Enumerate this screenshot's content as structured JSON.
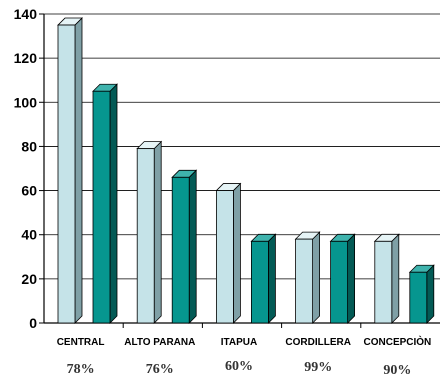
{
  "chart_data": {
    "type": "bar",
    "title": "",
    "xlabel": "",
    "ylabel": "",
    "ylim": [
      0,
      140
    ],
    "yticks": [
      0,
      20,
      40,
      60,
      80,
      100,
      120,
      140
    ],
    "grid": true,
    "categories": [
      "CENTRAL",
      "ALTO PARANA",
      "ITAPUA",
      "CORDILLERA",
      "CONCEPCIÒN"
    ],
    "series": [
      {
        "values": [
          135,
          79,
          60,
          38,
          37
        ]
      },
      {
        "values": [
          105,
          66,
          37,
          37,
          23
        ]
      }
    ],
    "annotations": [
      "78%",
      "76%",
      "60%",
      "99%",
      "90%"
    ],
    "colors": {
      "series1": "#c5e3e8",
      "series1_side": "#7fa0a6",
      "series2": "#06968f",
      "series2_side": "#035a55"
    }
  }
}
